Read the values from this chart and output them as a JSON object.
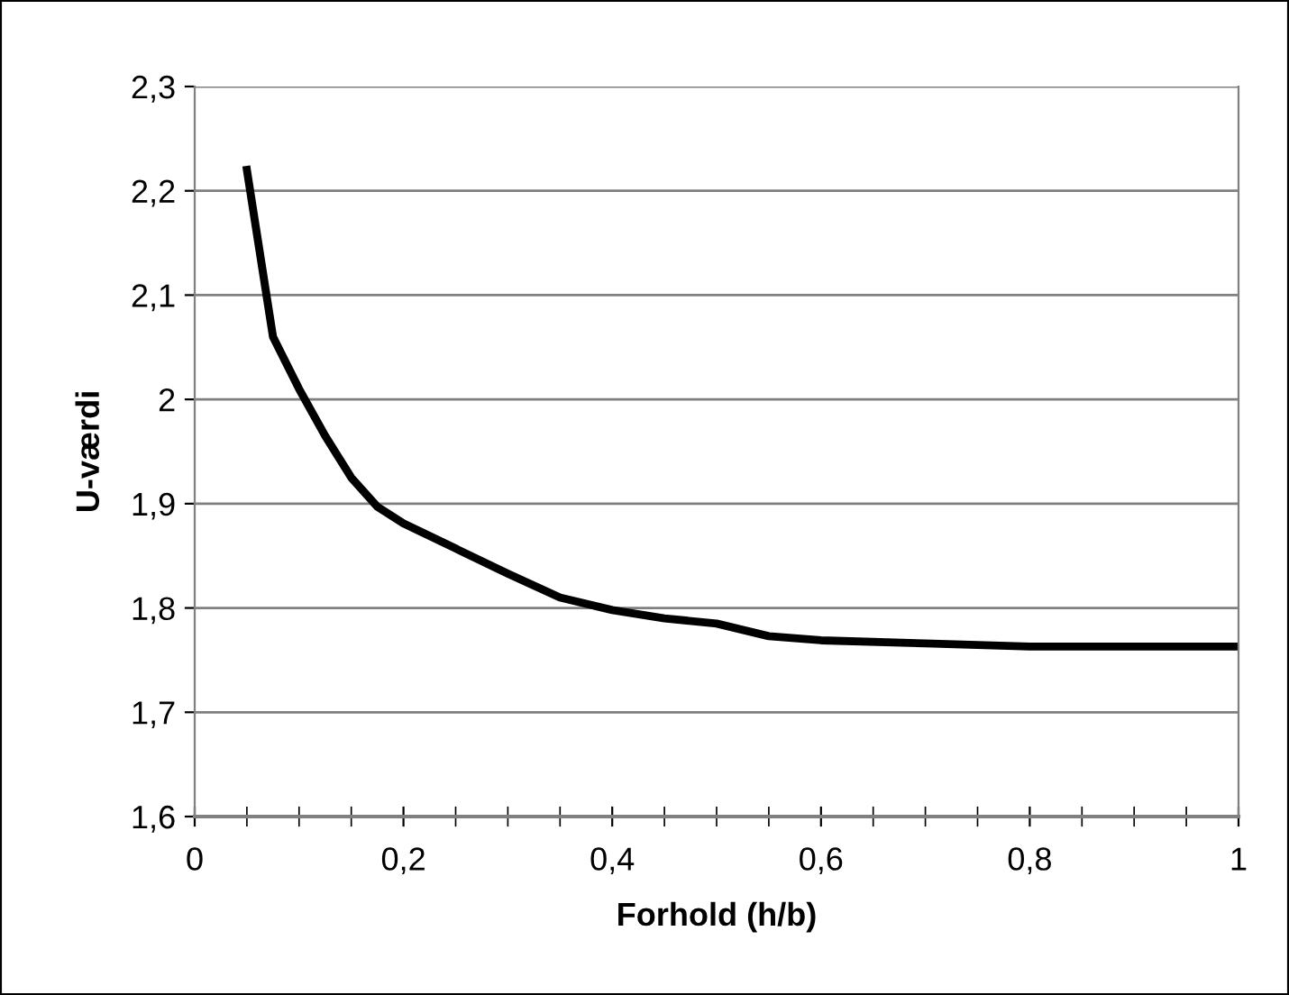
{
  "chart_data": {
    "type": "line",
    "xlabel": "Forhold (h/b)",
    "ylabel": "U-værdi",
    "x": [
      0.05,
      0.075,
      0.1,
      0.125,
      0.15,
      0.175,
      0.2,
      0.25,
      0.3,
      0.35,
      0.4,
      0.45,
      0.5,
      0.55,
      0.6,
      0.7,
      0.8,
      0.9,
      1.0
    ],
    "series": [
      {
        "color": "#000000",
        "values": [
          2.22,
          2.06,
          2.01,
          1.965,
          1.925,
          1.897,
          1.881,
          1.857,
          1.833,
          1.81,
          1.798,
          1.79,
          1.785,
          1.773,
          1.769,
          1.766,
          1.763,
          1.763,
          1.763
        ]
      }
    ],
    "xlim": [
      0,
      1
    ],
    "ylim": [
      1.6,
      2.3
    ],
    "xticks": [
      0,
      {
        "value": 0.2,
        "label": "0,2"
      },
      {
        "value": 0.4,
        "label": "0,4"
      },
      {
        "value": 0.6,
        "label": "0,6"
      },
      {
        "value": 0.8,
        "label": "0,8"
      },
      1
    ],
    "yticks": [
      {
        "value": 1.6,
        "label": "1,6"
      },
      {
        "value": 1.7,
        "label": "1,7"
      },
      {
        "value": 1.8,
        "label": "1,8"
      },
      {
        "value": 1.9,
        "label": "1,9"
      },
      2,
      {
        "value": 2.1,
        "label": "2,1"
      },
      {
        "value": 2.2,
        "label": "2,2"
      },
      {
        "value": 2.3,
        "label": "2,3"
      }
    ],
    "grid": "y",
    "marker": "none",
    "line_style": "solid",
    "legend": false
  }
}
